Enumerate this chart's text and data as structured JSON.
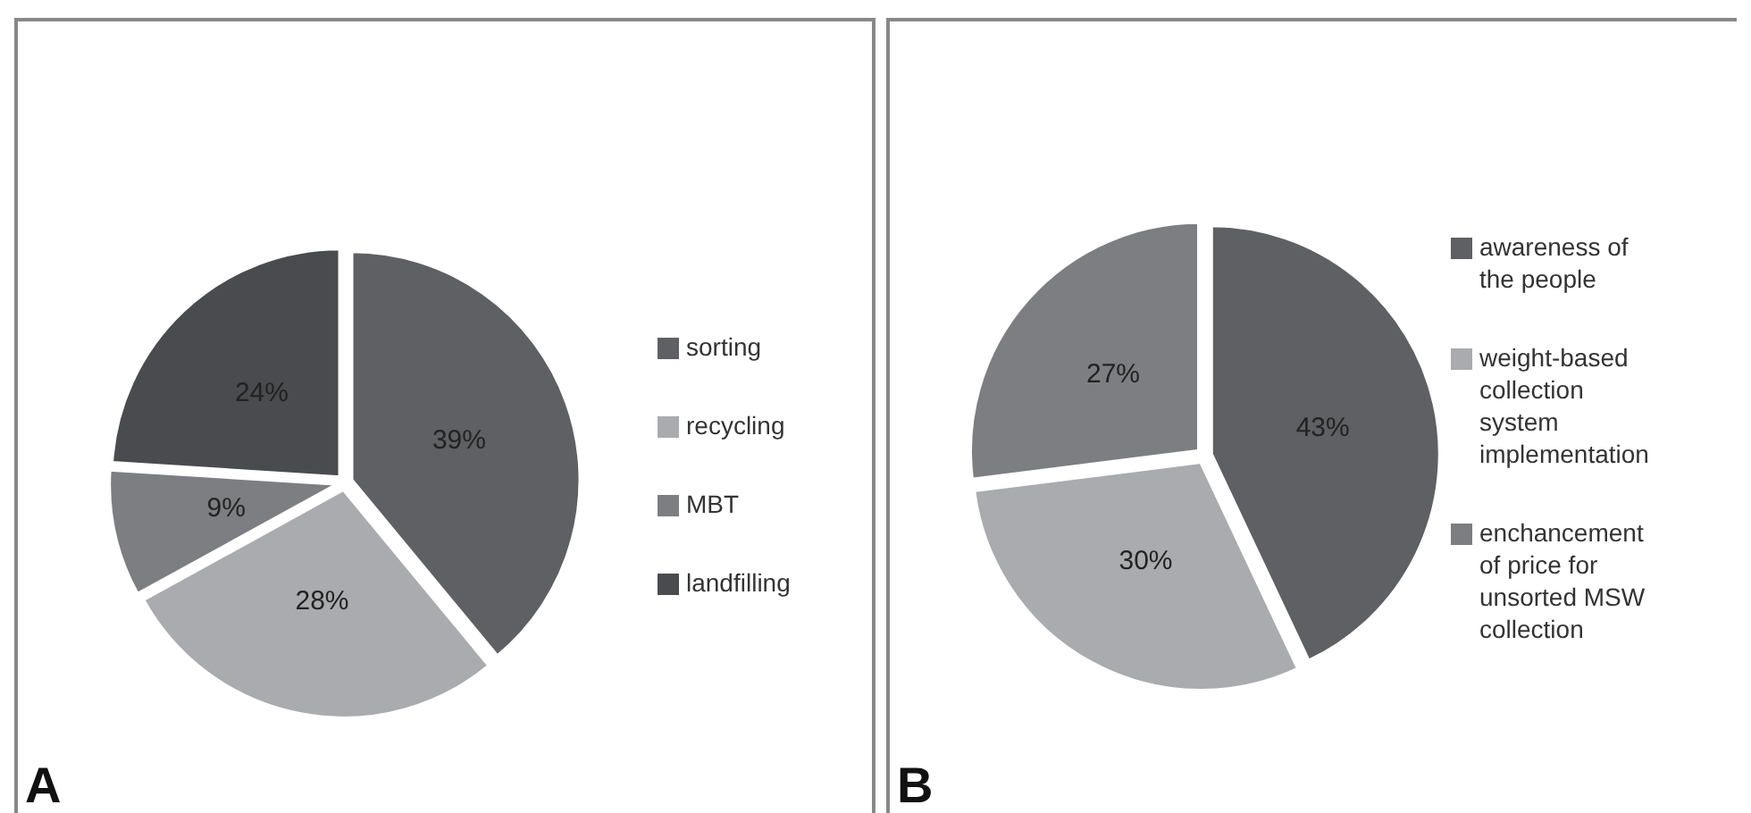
{
  "chart_data": [
    {
      "type": "pie",
      "title": "A",
      "categories": [
        "sorting",
        "recycling",
        "MBT",
        "landfilling"
      ],
      "values": [
        39,
        28,
        9,
        24
      ],
      "value_labels": [
        "39%",
        "28%",
        "9%",
        "24%"
      ],
      "colors": [
        "#5f6064",
        "#a9abae",
        "#7d7e82",
        "#4a4b4f"
      ],
      "legend": "right"
    },
    {
      "type": "pie",
      "title": "B",
      "categories": [
        "awareness of the people",
        "weight-based collection system implementation",
        "enchancement of price for unsorted MSW collection"
      ],
      "values": [
        43,
        30,
        27
      ],
      "value_labels": [
        "43%",
        "30%",
        "27%"
      ],
      "colors": [
        "#5f6064",
        "#a9abae",
        "#7d7e82"
      ],
      "legend": "right"
    }
  ]
}
